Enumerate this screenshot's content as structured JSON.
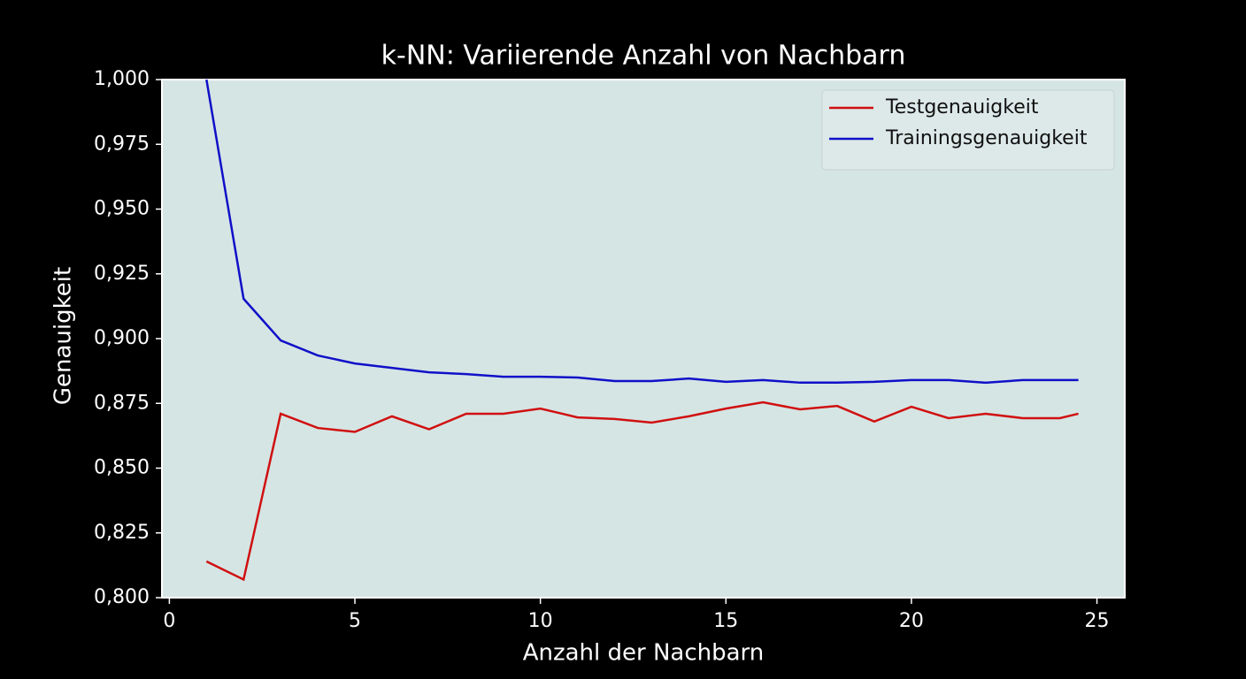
{
  "chart_data": {
    "type": "line",
    "title": "k-NN: Variierende Anzahl von Nachbarn",
    "x_label": "Anzahl der Nachbarn",
    "y_label": "Genauigkeit",
    "x": [
      1,
      2,
      3,
      4,
      5,
      6,
      7,
      8,
      9,
      10,
      11,
      12,
      13,
      14,
      15,
      16,
      17,
      18,
      19,
      20,
      21,
      22,
      23,
      24,
      24.5
    ],
    "series": [
      {
        "name": "Testgenauigkeit",
        "color": "#d01010",
        "values": [
          0.814,
          0.807,
          0.871,
          0.8655,
          0.864,
          0.87,
          0.865,
          0.871,
          0.871,
          0.873,
          0.8696,
          0.869,
          0.8676,
          0.87,
          0.873,
          0.8754,
          0.8727,
          0.874,
          0.868,
          0.8737,
          0.8693,
          0.871,
          0.8693,
          0.8693,
          0.871
        ]
      },
      {
        "name": "Trainingsgenauigkeit",
        "color": "#1010c8",
        "values": [
          1.0,
          0.9154,
          0.8993,
          0.8935,
          0.8904,
          0.8887,
          0.887,
          0.8863,
          0.8853,
          0.8853,
          0.885,
          0.8836,
          0.8836,
          0.8846,
          0.8833,
          0.884,
          0.883,
          0.883,
          0.8833,
          0.884,
          0.884,
          0.883,
          0.884,
          0.884,
          0.884
        ]
      }
    ],
    "xlim": [
      -0.2,
      25.75
    ],
    "xticks": [
      0,
      5,
      10,
      15,
      20,
      25
    ],
    "ylim": [
      0.8,
      1.0
    ],
    "yticks": [
      {
        "value": 0.8,
        "label": "0,800"
      },
      {
        "value": 0.825,
        "label": "0,825"
      },
      {
        "value": 0.85,
        "label": "0,850"
      },
      {
        "value": 0.875,
        "label": "0,875"
      },
      {
        "value": 0.9,
        "label": "0,900"
      },
      {
        "value": 0.925,
        "label": "0,925"
      },
      {
        "value": 0.95,
        "label": "0,950"
      },
      {
        "value": 0.975,
        "label": "0,975"
      },
      {
        "value": 1.0,
        "label": "1,000"
      }
    ],
    "legend": "upper right"
  }
}
